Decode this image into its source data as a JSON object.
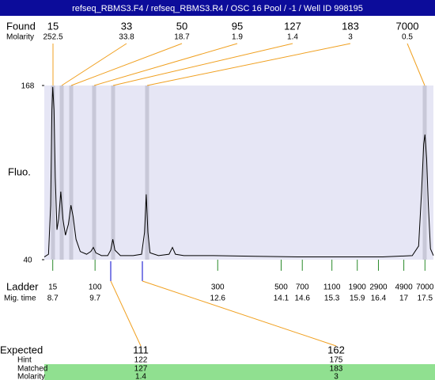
{
  "header": {
    "title": "refseq_RBMS3.F4 / refseq_RBMS3.R4 / OSC 16 Pool / -1 / Well ID 998195"
  },
  "found": {
    "label": "Found",
    "sublabel": "Molarity",
    "sizes": [
      15,
      33,
      50,
      95,
      127,
      183,
      7000
    ],
    "molarity": [
      252.5,
      33.8,
      18.7,
      1.9,
      1.4,
      3,
      0.5
    ]
  },
  "chart_data": {
    "type": "line",
    "y_label": "Fluo.",
    "color": "#000000",
    "xlim": [
      8.5,
      17.7
    ],
    "ylim": [
      40,
      168
    ],
    "yticks": [
      40,
      168
    ],
    "x": [
      8.5,
      8.6,
      8.65,
      8.68,
      8.7,
      8.73,
      8.76,
      8.8,
      8.84,
      8.89,
      8.94,
      9.0,
      9.07,
      9.13,
      9.18,
      9.25,
      9.35,
      9.5,
      9.6,
      9.66,
      9.72,
      9.85,
      10.0,
      10.07,
      10.12,
      10.17,
      10.3,
      10.6,
      10.8,
      10.87,
      10.91,
      10.95,
      11.0,
      11.2,
      11.45,
      11.53,
      11.6,
      11.8,
      12.5,
      13.5,
      14.5,
      15.5,
      16.5,
      17.2,
      17.35,
      17.42,
      17.47,
      17.5,
      17.54,
      17.58,
      17.63,
      17.7
    ],
    "values": [
      42,
      44,
      80,
      150,
      167,
      150,
      100,
      62,
      70,
      90,
      70,
      58,
      66,
      80,
      72,
      55,
      46,
      44,
      46,
      49,
      45,
      43,
      43,
      47,
      55,
      47,
      43,
      43,
      44,
      60,
      88,
      60,
      45,
      43,
      44,
      49,
      44,
      43,
      43,
      42.5,
      42,
      42,
      42,
      43,
      50,
      90,
      125,
      132,
      114,
      80,
      48,
      43
    ]
  },
  "ladder": {
    "label": "Ladder",
    "sublabel": "Mig. time",
    "sizes": [
      15,
      100,
      300,
      500,
      700,
      1100,
      1900,
      2900,
      4900,
      7000
    ],
    "times": [
      8.7,
      9.7,
      12.6,
      14.1,
      14.6,
      15.3,
      15.9,
      16.4,
      17,
      17.5
    ]
  },
  "expected": {
    "labels": [
      "Expected",
      "Hint",
      "Matched",
      "Molarity"
    ],
    "columns": [
      [
        111,
        122,
        127,
        1.4
      ],
      [
        162,
        175,
        183,
        3
      ]
    ]
  }
}
